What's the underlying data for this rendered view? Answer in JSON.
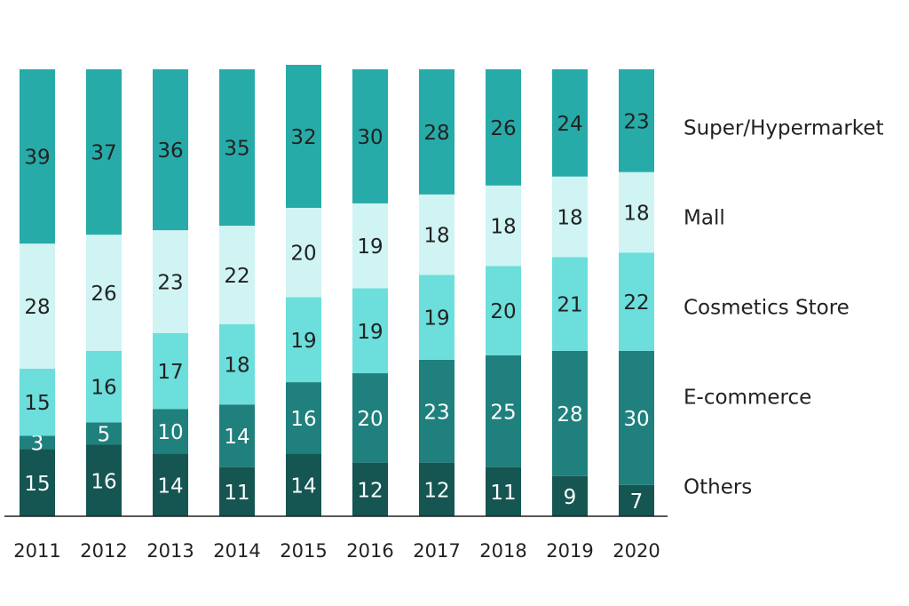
{
  "chart_data": {
    "type": "stacked_bar",
    "categories": [
      "2011",
      "2012",
      "2013",
      "2014",
      "2015",
      "2016",
      "2017",
      "2018",
      "2019",
      "2020"
    ],
    "series": [
      {
        "name": "Others",
        "color": "#155552",
        "values": [
          15,
          16,
          14,
          11,
          14,
          12,
          12,
          11,
          9,
          7
        ]
      },
      {
        "name": "E-commerce",
        "color": "#1f807d",
        "values": [
          3,
          5,
          10,
          14,
          16,
          20,
          23,
          25,
          28,
          30
        ]
      },
      {
        "name": "Cosmetics Store",
        "color": "#6cdedb",
        "values": [
          15,
          16,
          17,
          18,
          19,
          19,
          19,
          20,
          21,
          22
        ]
      },
      {
        "name": "Mall",
        "color": "#cff4f3",
        "values": [
          28,
          26,
          23,
          22,
          20,
          19,
          18,
          18,
          18,
          18
        ]
      },
      {
        "name": "Super/Hypermarket",
        "color": "#27aba8",
        "values": [
          39,
          37,
          36,
          35,
          32,
          30,
          28,
          26,
          24,
          23
        ]
      }
    ],
    "ylim": [
      0,
      100
    ]
  }
}
